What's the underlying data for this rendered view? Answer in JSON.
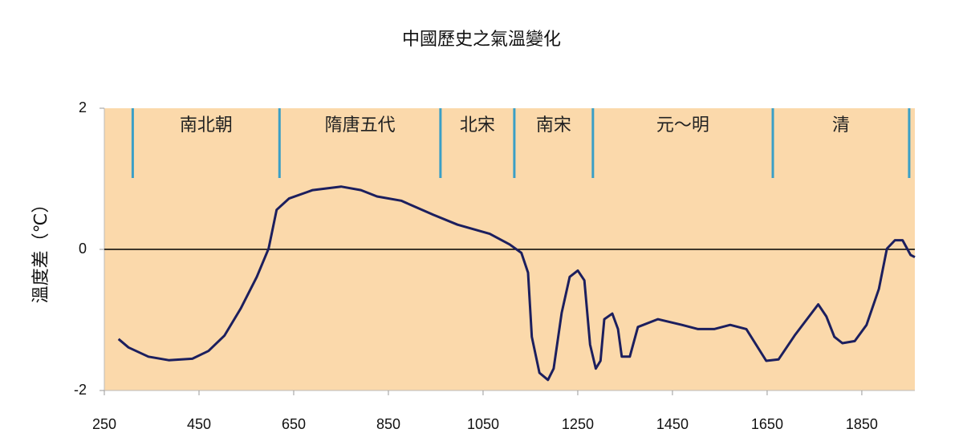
{
  "chart_data": {
    "type": "line",
    "title": "中國歷史之氣溫變化",
    "y_label": "溫度差（℃）",
    "xlim": [
      250,
      1962
    ],
    "xticks": [
      250,
      450,
      650,
      850,
      1050,
      1250,
      1450,
      1650,
      1850
    ],
    "ylim": [
      -2,
      2
    ],
    "yticks": [
      -2,
      0,
      2
    ],
    "reference_line": 0,
    "background": "#fbd9ab",
    "eras": [
      {
        "label": "南北朝",
        "start": 310,
        "end": 620
      },
      {
        "label": "隋唐五代",
        "start": 620,
        "end": 960
      },
      {
        "label": "北宋",
        "start": 960,
        "end": 1116
      },
      {
        "label": "南宋",
        "start": 1116,
        "end": 1282
      },
      {
        "label": "元～明",
        "start": 1282,
        "end": 1662
      },
      {
        "label": "清",
        "start": 1662,
        "end": 1950
      }
    ],
    "era_color": "#3a9fc6",
    "series": [
      {
        "color": "#1c1f5e",
        "x": [
          280,
          301,
          343,
          386,
          436,
          470,
          504,
          538,
          572,
          597,
          614,
          640,
          690,
          750,
          792,
          826,
          877,
          945,
          996,
          1064,
          1106,
          1131,
          1145,
          1153,
          1169,
          1187,
          1199,
          1216,
          1233,
          1250,
          1264,
          1276,
          1288,
          1298,
          1306,
          1323,
          1335,
          1343,
          1360,
          1377,
          1419,
          1470,
          1504,
          1538,
          1572,
          1606,
          1648,
          1674,
          1708,
          1758,
          1775,
          1792,
          1809,
          1835,
          1860,
          1886,
          1903,
          1920,
          1936,
          1953,
          1962
        ],
        "values": [
          -1.27,
          -1.39,
          -1.52,
          -1.57,
          -1.55,
          -1.44,
          -1.22,
          -0.84,
          -0.39,
          0.01,
          0.56,
          0.72,
          0.84,
          0.89,
          0.84,
          0.75,
          0.69,
          0.49,
          0.35,
          0.22,
          0.07,
          -0.05,
          -0.33,
          -1.24,
          -1.75,
          -1.85,
          -1.69,
          -0.9,
          -0.39,
          -0.3,
          -0.44,
          -1.35,
          -1.69,
          -1.58,
          -0.99,
          -0.91,
          -1.13,
          -1.52,
          -1.52,
          -1.1,
          -0.99,
          -1.07,
          -1.13,
          -1.13,
          -1.07,
          -1.13,
          -1.58,
          -1.56,
          -1.22,
          -0.78,
          -0.95,
          -1.24,
          -1.33,
          -1.3,
          -1.07,
          -0.56,
          0.01,
          0.13,
          0.13,
          -0.08,
          -0.11
        ]
      }
    ]
  }
}
